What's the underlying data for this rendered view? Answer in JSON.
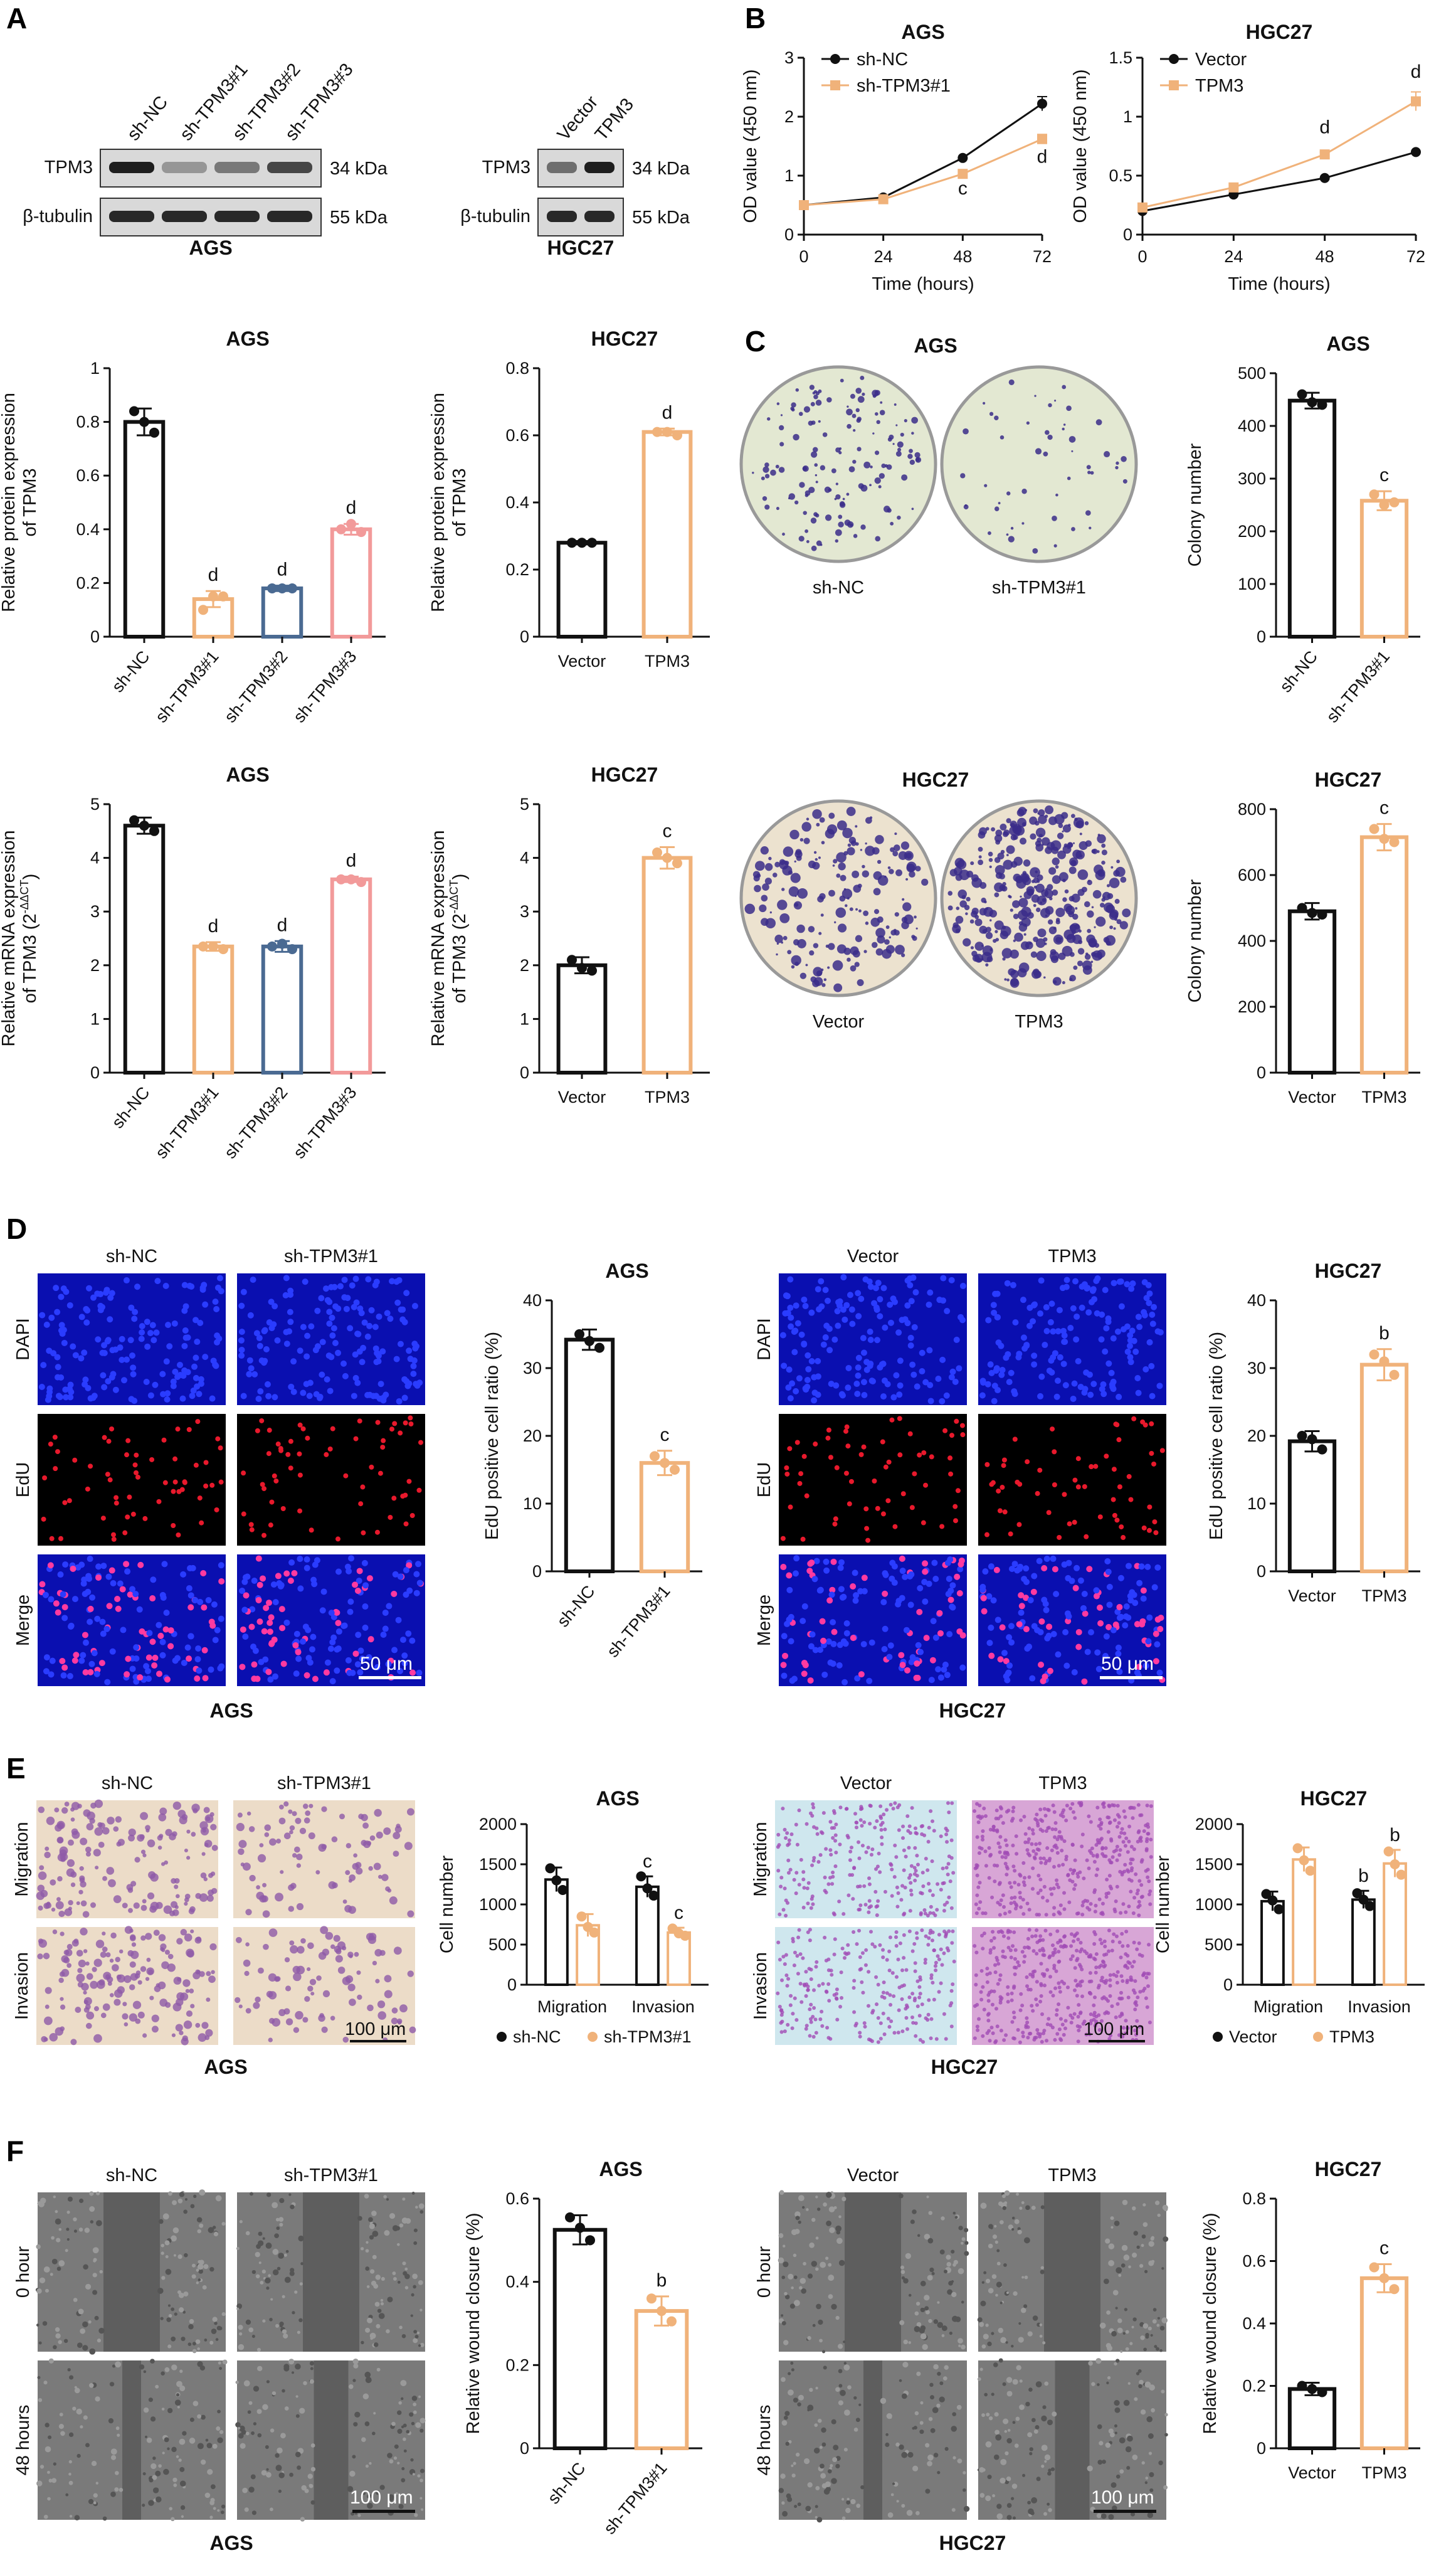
{
  "panel_letters": [
    "A",
    "B",
    "C",
    "D",
    "E",
    "F"
  ],
  "colors": {
    "ctrl": "#111111",
    "orange": "#f0b27a",
    "blue": "#4a6a92",
    "pink": "#f29a9a",
    "dapi_bg": "#0a1a8a",
    "edu_bg": "#000000",
    "plate": "#e8ead8",
    "transwell": "#efe0d2",
    "wound": "#6a6a6a"
  },
  "panelA": {
    "ags": {
      "lanes": [
        "sh-NC",
        "sh-TPM3#1",
        "sh-TPM3#2",
        "sh-TPM3#3"
      ],
      "rows": [
        {
          "name": "TPM3",
          "kda": "34 kDa"
        },
        {
          "name": "β-tubulin",
          "kda": "55 kDa"
        }
      ],
      "caption": "AGS",
      "band_intensity": {
        "TPM3": [
          0.95,
          0.35,
          0.5,
          0.75
        ],
        "β-tubulin": [
          0.9,
          0.9,
          0.9,
          0.9
        ]
      }
    },
    "hgc": {
      "lanes": [
        "Vector",
        "TPM3"
      ],
      "rows": [
        {
          "name": "TPM3",
          "kda": "34 kDa"
        },
        {
          "name": "β-tubulin",
          "kda": "55 kDa"
        }
      ],
      "caption": "HGC27",
      "band_intensity": {
        "TPM3": [
          0.55,
          0.95
        ],
        "β-tubulin": [
          0.9,
          0.9
        ]
      }
    }
  },
  "panelC_images": {
    "ags": {
      "title": "AGS",
      "labels": [
        "sh-NC",
        "sh-TPM3#1"
      ],
      "density": [
        0.35,
        0.12
      ]
    },
    "hgc": {
      "title": "HGC27",
      "labels": [
        "Vector",
        "TPM3"
      ],
      "density": [
        0.45,
        0.85
      ]
    }
  },
  "panelD_images": {
    "ags": {
      "cols": [
        "sh-NC",
        "sh-TPM3#1"
      ],
      "rows": [
        "DAPI",
        "EdU",
        "Merge"
      ],
      "caption": "AGS",
      "scale": "50 μm"
    },
    "hgc": {
      "cols": [
        "Vector",
        "TPM3"
      ],
      "rows": [
        "DAPI",
        "EdU",
        "Merge"
      ],
      "caption": "HGC27",
      "scale": "50 μm"
    }
  },
  "panelE_images": {
    "ags": {
      "cols": [
        "sh-NC",
        "sh-TPM3#1"
      ],
      "rows": [
        "Migration",
        "Invasion"
      ],
      "caption": "AGS",
      "scale": "100 μm"
    },
    "hgc": {
      "cols": [
        "Vector",
        "TPM3"
      ],
      "rows": [
        "Migration",
        "Invasion"
      ],
      "caption": "HGC27",
      "scale": "100 μm"
    }
  },
  "panelF_images": {
    "ags": {
      "cols": [
        "sh-NC",
        "sh-TPM3#1"
      ],
      "rows": [
        "0 hour",
        "48 hours"
      ],
      "caption": "AGS",
      "scale": "100 μm"
    },
    "hgc": {
      "cols": [
        "Vector",
        "TPM3"
      ],
      "rows": [
        "0 hour",
        "48 hours"
      ],
      "caption": "HGC27",
      "scale": "100 μm"
    }
  },
  "chart_data": [
    {
      "id": "B_ags",
      "type": "line",
      "title": "AGS",
      "xlabel": "Time (hours)",
      "ylabel": "OD value (450 nm)",
      "x": [
        0,
        24,
        48,
        72
      ],
      "xlim": [
        0,
        72
      ],
      "ylim": [
        0,
        3
      ],
      "yticks": [
        0,
        1,
        2,
        3
      ],
      "series": [
        {
          "name": "sh-NC",
          "color": "ctrl",
          "marker": "circle",
          "values": [
            0.5,
            0.63,
            1.3,
            2.22
          ],
          "err": [
            0,
            0,
            0,
            0.12
          ]
        },
        {
          "name": "sh-TPM3#1",
          "color": "orange",
          "marker": "square",
          "values": [
            0.5,
            0.6,
            1.03,
            1.62
          ],
          "err": [
            0,
            0,
            0,
            0.08
          ]
        }
      ],
      "annotations": [
        {
          "x": 48,
          "y": 0.68,
          "text": "c"
        },
        {
          "x": 72,
          "y": 1.22,
          "text": "d"
        }
      ],
      "legend": "top-left"
    },
    {
      "id": "B_hgc",
      "type": "line",
      "title": "HGC27",
      "xlabel": "Time (hours)",
      "ylabel": "OD value (450 nm)",
      "x": [
        0,
        24,
        48,
        72
      ],
      "xlim": [
        0,
        72
      ],
      "ylim": [
        0,
        1.5
      ],
      "yticks": [
        0,
        0.5,
        1.0,
        1.5
      ],
      "series": [
        {
          "name": "Vector",
          "color": "ctrl",
          "marker": "circle",
          "values": [
            0.2,
            0.34,
            0.48,
            0.7
          ],
          "err": [
            0,
            0,
            0,
            0
          ]
        },
        {
          "name": "TPM3",
          "color": "orange",
          "marker": "square",
          "values": [
            0.23,
            0.4,
            0.68,
            1.13
          ],
          "err": [
            0,
            0,
            0.02,
            0.08
          ]
        }
      ],
      "annotations": [
        {
          "x": 48,
          "y": 0.86,
          "text": "d"
        },
        {
          "x": 72,
          "y": 1.33,
          "text": "d"
        }
      ],
      "legend": "top-left"
    },
    {
      "id": "A_prot_ags",
      "type": "bar",
      "title": "AGS",
      "ylabel": "Relative protein expression of TPM3",
      "categories": [
        "sh-NC",
        "sh-TPM3#1",
        "sh-TPM3#2",
        "sh-TPM3#3"
      ],
      "values": [
        0.8,
        0.14,
        0.18,
        0.4
      ],
      "err": [
        0.05,
        0.03,
        0.01,
        0.02
      ],
      "points": [
        [
          0.84,
          0.8,
          0.76
        ],
        [
          0.1,
          0.15,
          0.15
        ],
        [
          0.18,
          0.18,
          0.18
        ],
        [
          0.4,
          0.42,
          0.39
        ]
      ],
      "colors": [
        "ctrl",
        "orange",
        "blue",
        "pink"
      ],
      "sig": [
        "",
        "d",
        "d",
        "d"
      ],
      "ylim": [
        0,
        1.0
      ],
      "yticks": [
        0,
        0.2,
        0.4,
        0.6,
        0.8,
        1.0
      ],
      "rotate_labels": true
    },
    {
      "id": "A_prot_hgc",
      "type": "bar",
      "title": "HGC27",
      "ylabel": "Relative protein expression of TPM3",
      "categories": [
        "Vector",
        "TPM3"
      ],
      "values": [
        0.28,
        0.61
      ],
      "err": [
        0.005,
        0.01
      ],
      "points": [
        [
          0.28,
          0.28,
          0.28
        ],
        [
          0.61,
          0.61,
          0.6
        ]
      ],
      "colors": [
        "ctrl",
        "orange"
      ],
      "sig": [
        "",
        "d"
      ],
      "ylim": [
        0,
        0.8
      ],
      "yticks": [
        0,
        0.2,
        0.4,
        0.6,
        0.8
      ],
      "rotate_labels": false
    },
    {
      "id": "A_mrna_ags",
      "type": "bar",
      "title": "AGS",
      "ylabel": "Relative mRNA expression of TPM3 (2^-ΔΔCT)",
      "categories": [
        "sh-NC",
        "sh-TPM3#1",
        "sh-TPM3#2",
        "sh-TPM3#3"
      ],
      "values": [
        4.6,
        2.35,
        2.35,
        3.6
      ],
      "err": [
        0.15,
        0.08,
        0.1,
        0.05
      ],
      "points": [
        [
          4.7,
          4.6,
          4.5
        ],
        [
          2.35,
          2.35,
          2.3
        ],
        [
          2.35,
          2.4,
          2.3
        ],
        [
          3.6,
          3.6,
          3.55
        ]
      ],
      "colors": [
        "ctrl",
        "orange",
        "blue",
        "pink"
      ],
      "sig": [
        "",
        "d",
        "d",
        "d"
      ],
      "ylim": [
        0,
        5
      ],
      "yticks": [
        0,
        1,
        2,
        3,
        4,
        5
      ],
      "rotate_labels": true
    },
    {
      "id": "A_mrna_hgc",
      "type": "bar",
      "title": "HGC27",
      "ylabel": "Relative mRNA expression of TPM3 (2^-ΔΔCT)",
      "categories": [
        "Vector",
        "TPM3"
      ],
      "values": [
        2.0,
        4.0
      ],
      "err": [
        0.15,
        0.2
      ],
      "points": [
        [
          2.1,
          1.95,
          1.9
        ],
        [
          4.1,
          4.0,
          3.9
        ]
      ],
      "colors": [
        "ctrl",
        "orange"
      ],
      "sig": [
        "",
        "c"
      ],
      "ylim": [
        0,
        5
      ],
      "yticks": [
        0,
        1,
        2,
        3,
        4,
        5
      ],
      "rotate_labels": false
    },
    {
      "id": "C_ags",
      "type": "bar",
      "title": "AGS",
      "ylabel": "Colony number",
      "categories": [
        "sh-NC",
        "sh-TPM3#1"
      ],
      "values": [
        448,
        258
      ],
      "err": [
        15,
        18
      ],
      "points": [
        [
          460,
          445,
          440
        ],
        [
          270,
          250,
          255
        ]
      ],
      "colors": [
        "ctrl",
        "orange"
      ],
      "sig": [
        "",
        "c"
      ],
      "ylim": [
        0,
        500
      ],
      "yticks": [
        0,
        100,
        200,
        300,
        400,
        500
      ],
      "rotate_labels": true
    },
    {
      "id": "C_hgc",
      "type": "bar",
      "title": "HGC27",
      "ylabel": "Colony number",
      "categories": [
        "Vector",
        "TPM3"
      ],
      "values": [
        490,
        715
      ],
      "err": [
        25,
        40
      ],
      "points": [
        [
          500,
          485,
          480
        ],
        [
          740,
          710,
          700
        ]
      ],
      "colors": [
        "ctrl",
        "orange"
      ],
      "sig": [
        "",
        "c"
      ],
      "ylim": [
        0,
        800
      ],
      "yticks": [
        0,
        200,
        400,
        600,
        800
      ],
      "rotate_labels": false
    },
    {
      "id": "D_ags",
      "type": "bar",
      "title": "AGS",
      "ylabel": "EdU positive cell ratio (%)",
      "categories": [
        "sh-NC",
        "sh-TPM3#1"
      ],
      "values": [
        34.2,
        16.0
      ],
      "err": [
        1.5,
        1.8
      ],
      "points": [
        [
          35,
          34,
          33
        ],
        [
          17,
          16,
          15
        ]
      ],
      "colors": [
        "ctrl",
        "orange"
      ],
      "sig": [
        "",
        "c"
      ],
      "ylim": [
        0,
        40
      ],
      "yticks": [
        0,
        10,
        20,
        30,
        40
      ],
      "rotate_labels": true
    },
    {
      "id": "D_hgc",
      "type": "bar",
      "title": "HGC27",
      "ylabel": "EdU positive cell ratio (%)",
      "categories": [
        "Vector",
        "TPM3"
      ],
      "values": [
        19.2,
        30.5
      ],
      "err": [
        1.5,
        2.3
      ],
      "points": [
        [
          20,
          19.5,
          18
        ],
        [
          32,
          31,
          29
        ]
      ],
      "colors": [
        "ctrl",
        "orange"
      ],
      "sig": [
        "",
        "b"
      ],
      "ylim": [
        0,
        40
      ],
      "yticks": [
        0,
        10,
        20,
        30,
        40
      ],
      "rotate_labels": false
    },
    {
      "id": "E_ags",
      "type": "bar",
      "title": "AGS",
      "ylabel": "Cell number",
      "categories": [
        "Migration",
        "Invasion"
      ],
      "series": [
        {
          "name": "sh-NC",
          "color": "ctrl",
          "values": [
            1310,
            1220
          ],
          "err": [
            150,
            130
          ],
          "points": [
            [
              1450,
              1300,
              1180
            ],
            [
              1350,
              1200,
              1110
            ]
          ]
        },
        {
          "name": "sh-TPM3#1",
          "color": "orange",
          "values": [
            740,
            650
          ],
          "err": [
            140,
            60
          ],
          "points": [
            [
              850,
              720,
              650
            ],
            [
              700,
              640,
              610
            ]
          ]
        }
      ],
      "sig": [
        [
          "",
          "c"
        ],
        [
          "",
          "c"
        ]
      ],
      "ylim": [
        0,
        2000
      ],
      "yticks": [
        0,
        500,
        1000,
        1500,
        2000
      ],
      "legend": "bottom"
    },
    {
      "id": "E_hgc",
      "type": "bar",
      "title": "HGC27",
      "ylabel": "Cell number",
      "categories": [
        "Migration",
        "Invasion"
      ],
      "series": [
        {
          "name": "Vector",
          "color": "ctrl",
          "values": [
            1040,
            1060
          ],
          "err": [
            120,
            110
          ],
          "points": [
            [
              1130,
              1050,
              940
            ],
            [
              1140,
              1060,
              980
            ]
          ]
        },
        {
          "name": "TPM3",
          "color": "orange",
          "values": [
            1560,
            1510
          ],
          "err": [
            150,
            170
          ],
          "points": [
            [
              1700,
              1550,
              1420
            ],
            [
              1660,
              1500,
              1370
            ]
          ]
        }
      ],
      "sig": [
        [
          "",
          "b"
        ],
        [
          "",
          "b"
        ]
      ],
      "ylim": [
        0,
        2000
      ],
      "yticks": [
        0,
        500,
        1000,
        1500,
        2000
      ],
      "legend": "bottom"
    },
    {
      "id": "F_ags",
      "type": "bar",
      "title": "AGS",
      "ylabel": "Relative wound closure (%)",
      "categories": [
        "sh-NC",
        "sh-TPM3#1"
      ],
      "values": [
        0.525,
        0.33
      ],
      "err": [
        0.035,
        0.035
      ],
      "points": [
        [
          0.555,
          0.53,
          0.5
        ],
        [
          0.36,
          0.33,
          0.305
        ]
      ],
      "colors": [
        "ctrl",
        "orange"
      ],
      "sig": [
        "",
        "b"
      ],
      "ylim": [
        0,
        0.6
      ],
      "yticks": [
        0,
        0.2,
        0.4,
        0.6
      ],
      "rotate_labels": true
    },
    {
      "id": "F_hgc",
      "type": "bar",
      "title": "HGC27",
      "ylabel": "Relative wound closure (%)",
      "categories": [
        "Vector",
        "TPM3"
      ],
      "values": [
        0.19,
        0.545
      ],
      "err": [
        0.02,
        0.045
      ],
      "points": [
        [
          0.2,
          0.19,
          0.18
        ],
        [
          0.58,
          0.545,
          0.51
        ]
      ],
      "colors": [
        "ctrl",
        "orange"
      ],
      "sig": [
        "",
        "c"
      ],
      "ylim": [
        0,
        0.8
      ],
      "yticks": [
        0,
        0.2,
        0.4,
        0.6,
        0.8
      ],
      "rotate_labels": false
    }
  ]
}
